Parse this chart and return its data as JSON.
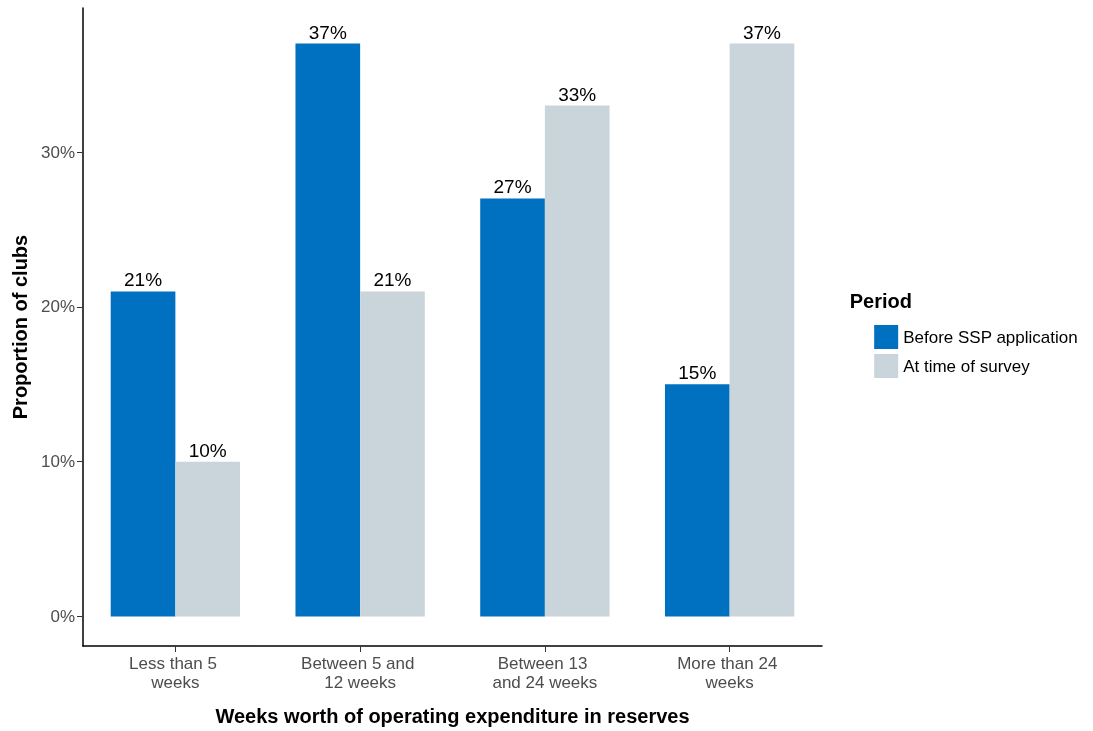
{
  "chart_data": {
    "type": "bar",
    "xlabel": "Weeks worth of operating expenditure in reserves",
    "ylabel": "Proportion of clubs",
    "legend_title": "Period",
    "categories": [
      "Less than 5 weeks",
      "Between 5 and 12 weeks",
      "Between 13 and 24 weeks",
      "More than 24 weeks"
    ],
    "series": [
      {
        "name": "Before SSP application",
        "color": "#0070c0",
        "values": [
          21,
          37,
          27,
          15
        ],
        "value_labels": [
          "21%",
          "37%",
          "27%",
          "15%"
        ]
      },
      {
        "name": "At time of survey",
        "color": "#c9d5da",
        "values": [
          10,
          21,
          33,
          37
        ],
        "value_labels": [
          "10%",
          "21%",
          "33%",
          "37%"
        ]
      }
    ],
    "ylim": [
      -1.9,
      39.3
    ],
    "yticks": [
      {
        "value": 0,
        "label": "0%"
      },
      {
        "value": 10,
        "label": "10%"
      },
      {
        "value": 20,
        "label": "20%"
      },
      {
        "value": 30,
        "label": "30%"
      }
    ],
    "grid": false,
    "legend": "right"
  }
}
